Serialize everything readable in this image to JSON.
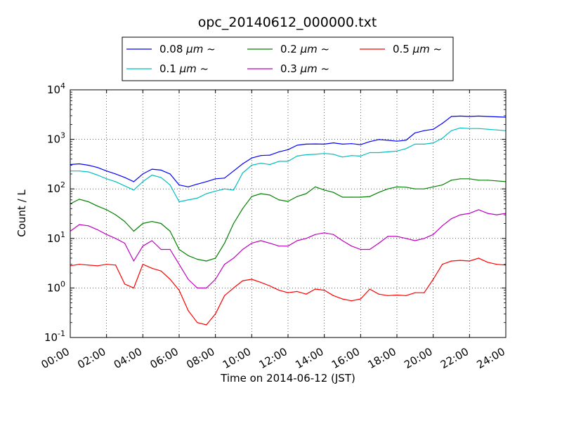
{
  "chart_data": {
    "type": "line",
    "title": "opc_20140612_000000.txt",
    "xlabel": "Time on 2014-06-12 (JST)",
    "ylabel": "Count / L",
    "yscale": "log",
    "ylim": [
      0.1,
      10000
    ],
    "xlim": [
      "00:00",
      "24:00"
    ],
    "grid": true,
    "legend_position": "top-center",
    "legend_columns": 3,
    "x_tick_labels": [
      "00:00",
      "02:00",
      "04:00",
      "06:00",
      "08:00",
      "10:00",
      "12:00",
      "14:00",
      "16:00",
      "18:00",
      "20:00",
      "22:00",
      "24:00"
    ],
    "y_ticks": [
      {
        "value": 0.1,
        "base": "10",
        "exp": "-1"
      },
      {
        "value": 1,
        "base": "10",
        "exp": "0"
      },
      {
        "value": 10,
        "base": "10",
        "exp": "1"
      },
      {
        "value": 100,
        "base": "10",
        "exp": "2"
      },
      {
        "value": 1000,
        "base": "10",
        "exp": "3"
      },
      {
        "value": 10000,
        "base": "10",
        "exp": "4"
      }
    ],
    "x": [
      "00:00",
      "00:30",
      "01:00",
      "01:30",
      "02:00",
      "02:30",
      "03:00",
      "03:30",
      "04:00",
      "04:30",
      "05:00",
      "05:30",
      "06:00",
      "06:30",
      "07:00",
      "07:30",
      "08:00",
      "08:30",
      "09:00",
      "09:30",
      "10:00",
      "10:30",
      "11:00",
      "11:30",
      "12:00",
      "12:30",
      "13:00",
      "13:30",
      "14:00",
      "14:30",
      "15:00",
      "15:30",
      "16:00",
      "16:30",
      "17:00",
      "17:30",
      "18:00",
      "18:30",
      "19:00",
      "19:30",
      "20:00",
      "20:30",
      "21:00",
      "21:30",
      "22:00",
      "22:30",
      "23:00",
      "23:30",
      "24:00"
    ],
    "series": [
      {
        "name": "0.08 μm ~",
        "legend_prefix": "0.08 ",
        "legend_unit": "μm",
        "legend_suffix": " ~",
        "color": "#0000ff",
        "values": [
          310,
          320,
          300,
          270,
          230,
          200,
          170,
          140,
          200,
          250,
          240,
          200,
          120,
          110,
          125,
          140,
          160,
          165,
          230,
          320,
          420,
          470,
          480,
          560,
          620,
          760,
          800,
          810,
          800,
          850,
          800,
          820,
          780,
          900,
          990,
          960,
          920,
          960,
          1350,
          1500,
          1600,
          2100,
          2900,
          2950,
          2900,
          2950,
          2900,
          2850,
          2800
        ]
      },
      {
        "name": "0.1 μm ~",
        "legend_prefix": "0.1 ",
        "legend_unit": "μm",
        "legend_suffix": " ~",
        "color": "#00bfbf",
        "values": [
          230,
          230,
          220,
          190,
          160,
          140,
          115,
          95,
          140,
          190,
          170,
          120,
          55,
          60,
          65,
          80,
          90,
          100,
          95,
          210,
          300,
          330,
          310,
          360,
          360,
          460,
          490,
          500,
          520,
          500,
          440,
          470,
          460,
          540,
          540,
          560,
          580,
          650,
          800,
          800,
          850,
          1050,
          1500,
          1700,
          1650,
          1650,
          1600,
          1550,
          1500
        ]
      },
      {
        "name": "0.2 μm ~",
        "legend_prefix": "0.2 ",
        "legend_unit": "μm",
        "legend_suffix": " ~",
        "color": "#008000",
        "values": [
          50,
          62,
          55,
          45,
          38,
          30,
          22,
          14,
          20,
          22,
          20,
          14,
          6,
          4.5,
          3.8,
          3.5,
          4,
          8,
          20,
          40,
          70,
          80,
          75,
          60,
          56,
          70,
          80,
          110,
          95,
          85,
          68,
          68,
          68,
          70,
          85,
          100,
          110,
          108,
          100,
          100,
          110,
          120,
          150,
          160,
          160,
          150,
          150,
          145,
          140
        ]
      },
      {
        "name": "0.3 μm ~",
        "legend_prefix": "0.3 ",
        "legend_unit": "μm",
        "legend_suffix": " ~",
        "color": "#bf00bf",
        "values": [
          14,
          19,
          18,
          15,
          12,
          10,
          8,
          3.5,
          7,
          9,
          6,
          6,
          3,
          1.5,
          1.0,
          1.0,
          1.5,
          3,
          4,
          6,
          8,
          9,
          8,
          7,
          7,
          9,
          10,
          12,
          13,
          12,
          9,
          7,
          6,
          6,
          8,
          11,
          11,
          10,
          9,
          10,
          12,
          18,
          25,
          30,
          32,
          38,
          32,
          30,
          32
        ]
      },
      {
        "name": "0.5 μm ~",
        "legend_prefix": "0.5 ",
        "legend_unit": "μm",
        "legend_suffix": " ~",
        "color": "#ff0000",
        "values": [
          2.8,
          3.0,
          2.9,
          2.8,
          3.0,
          2.9,
          1.2,
          1.0,
          3.0,
          2.5,
          2.2,
          1.5,
          0.9,
          0.35,
          0.2,
          0.18,
          0.3,
          0.7,
          1.0,
          1.4,
          1.5,
          1.3,
          1.1,
          0.9,
          0.8,
          0.85,
          0.75,
          0.95,
          0.9,
          0.7,
          0.6,
          0.55,
          0.6,
          0.95,
          0.75,
          0.7,
          0.72,
          0.7,
          0.8,
          0.8,
          1.5,
          3.0,
          3.5,
          3.6,
          3.5,
          4.0,
          3.3,
          3.0,
          2.9
        ]
      }
    ]
  }
}
